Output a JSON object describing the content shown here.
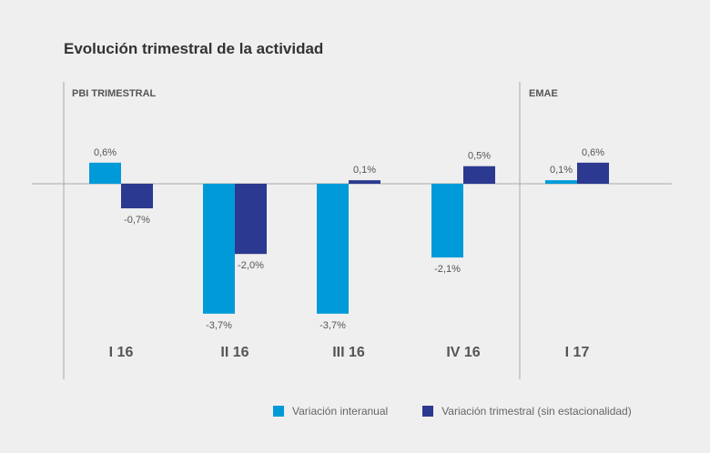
{
  "chart_data": {
    "type": "bar",
    "title": "Evolución trimestral de la actividad",
    "sections": [
      {
        "label": "PBI TRIMESTRAL",
        "categories": [
          "I 16",
          "II 16",
          "III 16",
          "IV 16"
        ]
      },
      {
        "label": "EMAE",
        "categories": [
          "I 17"
        ]
      }
    ],
    "categories": [
      "I 16",
      "II 16",
      "III 16",
      "IV 16",
      "I 17"
    ],
    "series": [
      {
        "name": "Variación interanual",
        "color": "#009ad9",
        "values": [
          0.6,
          -3.7,
          -3.7,
          -2.1,
          0.1
        ],
        "labels": [
          "0,6%",
          "-3,7%",
          "-3,7%",
          "-2,1%",
          "0,1%"
        ]
      },
      {
        "name": "Variación trimestral (sin estacionalidad)",
        "color": "#2b3990",
        "values": [
          -0.7,
          -2.0,
          0.1,
          0.5,
          0.6
        ],
        "labels": [
          "-0,7%",
          "-2,0%",
          "0,1%",
          "0,5%",
          "0,6%"
        ]
      }
    ],
    "grid": false,
    "legend_position": "bottom"
  }
}
